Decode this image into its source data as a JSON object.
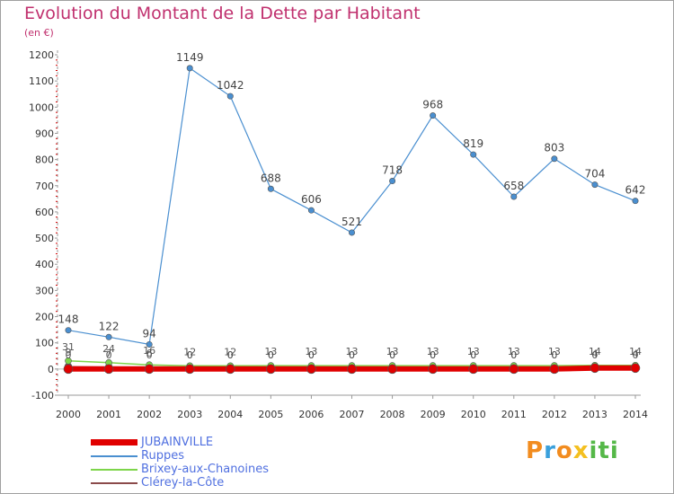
{
  "header": {
    "title": "Evolution du Montant de la Dette par Habitant",
    "subtitle": "(en €)"
  },
  "logo": {
    "text": "Proxiti"
  },
  "colors": {
    "title": "#c0306e",
    "ruppes": "#4a8fd0",
    "brixey": "#7dd54a",
    "clerey": "#8b4a4a",
    "jubainville": "#e00000",
    "legend_text": "#5070e0"
  },
  "chart_data": {
    "type": "line",
    "title": "Evolution du Montant de la Dette par Habitant",
    "subtitle": "(en €)",
    "xlabel": "",
    "ylabel": "",
    "x": [
      2000,
      2001,
      2002,
      2003,
      2004,
      2005,
      2006,
      2007,
      2008,
      2009,
      2010,
      2011,
      2012,
      2013,
      2014
    ],
    "ylim": [
      -100,
      1200
    ],
    "yticks": [
      -100,
      0,
      100,
      200,
      300,
      400,
      500,
      600,
      700,
      800,
      900,
      1000,
      1100,
      1200
    ],
    "grid": false,
    "legend_position": "bottom-left",
    "series": [
      {
        "name": "JUBAINVILLE",
        "color": "#e00000",
        "values": [
          0,
          0,
          0,
          0,
          0,
          0,
          0,
          0,
          0,
          0,
          0,
          0,
          0,
          4,
          4
        ]
      },
      {
        "name": "Ruppes",
        "color": "#4a8fd0",
        "values": [
          148,
          122,
          94,
          1149,
          1042,
          688,
          606,
          521,
          718,
          968,
          819,
          658,
          803,
          704,
          642
        ]
      },
      {
        "name": "Brixey-aux-Chanoines",
        "color": "#7dd54a",
        "values": [
          31,
          24,
          16,
          12,
          12,
          13,
          13,
          13,
          13,
          13,
          13,
          13,
          13,
          14,
          14
        ]
      },
      {
        "name": "Clérey-la-Côte",
        "color": "#8b4a4a",
        "values": [
          9,
          7,
          6,
          0,
          0,
          0,
          0,
          0,
          0,
          0,
          0,
          0,
          0,
          0,
          0
        ]
      }
    ]
  }
}
